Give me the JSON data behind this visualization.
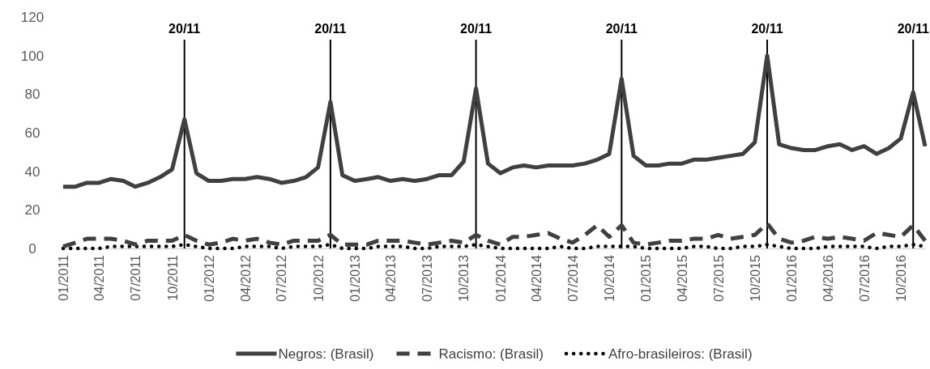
{
  "chart_data": {
    "type": "line",
    "x": [
      "2011-01",
      "2011-02",
      "2011-03",
      "2011-04",
      "2011-05",
      "2011-06",
      "2011-07",
      "2011-08",
      "2011-09",
      "2011-10",
      "2011-11",
      "2011-12",
      "2012-01",
      "2012-02",
      "2012-03",
      "2012-04",
      "2012-05",
      "2012-06",
      "2012-07",
      "2012-08",
      "2012-09",
      "2012-10",
      "2012-11",
      "2012-12",
      "2013-01",
      "2013-02",
      "2013-03",
      "2013-04",
      "2013-05",
      "2013-06",
      "2013-07",
      "2013-08",
      "2013-09",
      "2013-10",
      "2013-11",
      "2013-12",
      "2014-01",
      "2014-02",
      "2014-03",
      "2014-04",
      "2014-05",
      "2014-06",
      "2014-07",
      "2014-08",
      "2014-09",
      "2014-10",
      "2014-11",
      "2014-12",
      "2015-01",
      "2015-02",
      "2015-03",
      "2015-04",
      "2015-05",
      "2015-06",
      "2015-07",
      "2015-08",
      "2015-09",
      "2015-10",
      "2015-11",
      "2015-12",
      "2016-01",
      "2016-02",
      "2016-03",
      "2016-04",
      "2016-05",
      "2016-06",
      "2016-07",
      "2016-08",
      "2016-09",
      "2016-10",
      "2016-11",
      "2016-12"
    ],
    "series": [
      {
        "name": "Negros: (Brasil)",
        "color": "#404040",
        "line_style": "solid",
        "values": [
          32,
          32,
          34,
          34,
          36,
          35,
          32,
          34,
          37,
          41,
          67,
          39,
          35,
          35,
          36,
          36,
          37,
          36,
          34,
          35,
          37,
          42,
          76,
          38,
          35,
          36,
          37,
          35,
          36,
          35,
          36,
          38,
          38,
          45,
          83,
          44,
          39,
          42,
          43,
          42,
          43,
          43,
          43,
          44,
          46,
          49,
          88,
          48,
          43,
          43,
          44,
          44,
          46,
          46,
          47,
          48,
          49,
          55,
          100,
          54,
          52,
          51,
          51,
          53,
          54,
          51,
          53,
          49,
          52,
          57,
          81,
          53
        ]
      },
      {
        "name": "Racismo: (Brasil)",
        "color": "#404040",
        "line_style": "dashed",
        "values": [
          1,
          3,
          5,
          5,
          5,
          4,
          2,
          4,
          4,
          4,
          7,
          4,
          2,
          3,
          5,
          4,
          5,
          3,
          2,
          4,
          4,
          4,
          7,
          2,
          2,
          2,
          4,
          4,
          4,
          3,
          2,
          3,
          4,
          3,
          7,
          4,
          2,
          6,
          6,
          7,
          8,
          5,
          3,
          7,
          12,
          6,
          12,
          3,
          2,
          3,
          4,
          4,
          5,
          5,
          7,
          5,
          6,
          7,
          13,
          5,
          3,
          4,
          6,
          5,
          6,
          5,
          4,
          8,
          7,
          6,
          12,
          4
        ]
      },
      {
        "name": "Afro-brasileiros: (Brasil)",
        "color": "#000000",
        "line_style": "dotted",
        "values": [
          0,
          0,
          0,
          0,
          1,
          1,
          1,
          1,
          1,
          1,
          2,
          1,
          0,
          0,
          0,
          1,
          1,
          1,
          0,
          1,
          1,
          1,
          2,
          0,
          0,
          0,
          1,
          1,
          1,
          0,
          0,
          1,
          1,
          1,
          2,
          1,
          0,
          0,
          0,
          0,
          0,
          1,
          0,
          0,
          1,
          1,
          1,
          1,
          0,
          0,
          0,
          0,
          1,
          1,
          0,
          0,
          1,
          1,
          2,
          1,
          0,
          0,
          0,
          1,
          1,
          1,
          1,
          0,
          1,
          1,
          2,
          1
        ]
      }
    ],
    "xlim": [
      "2011-01",
      "2016-12"
    ],
    "xticks": [
      {
        "value": "2011-01",
        "label": "01/2011"
      },
      {
        "value": "2011-04",
        "label": "04/2011"
      },
      {
        "value": "2011-07",
        "label": "07/2011"
      },
      {
        "value": "2011-10",
        "label": "10/2011"
      },
      {
        "value": "2012-01",
        "label": "01/2012"
      },
      {
        "value": "2012-04",
        "label": "04/2012"
      },
      {
        "value": "2012-07",
        "label": "07/2012"
      },
      {
        "value": "2012-10",
        "label": "10/2012"
      },
      {
        "value": "2013-01",
        "label": "01/2013"
      },
      {
        "value": "2013-04",
        "label": "04/2013"
      },
      {
        "value": "2013-07",
        "label": "07/2013"
      },
      {
        "value": "2013-10",
        "label": "10/2013"
      },
      {
        "value": "2014-01",
        "label": "01/2014"
      },
      {
        "value": "2014-04",
        "label": "04/2014"
      },
      {
        "value": "2014-07",
        "label": "07/2014"
      },
      {
        "value": "2014-10",
        "label": "10/2014"
      },
      {
        "value": "2015-01",
        "label": "01/2015"
      },
      {
        "value": "2015-04",
        "label": "04/2015"
      },
      {
        "value": "2015-07",
        "label": "07/2015"
      },
      {
        "value": "2015-10",
        "label": "10/2015"
      },
      {
        "value": "2016-01",
        "label": "01/2016"
      },
      {
        "value": "2016-04",
        "label": "04/2016"
      },
      {
        "value": "2016-07",
        "label": "07/2016"
      },
      {
        "value": "2016-10",
        "label": "10/2016"
      }
    ],
    "ylim": [
      0,
      120
    ],
    "yticks": [
      0,
      20,
      40,
      60,
      80,
      100,
      120
    ],
    "grid": false,
    "legend": "bottom",
    "ref_lines": [
      {
        "axis": "x",
        "value": "2011-11",
        "label": "20/11",
        "color": "#000000"
      },
      {
        "axis": "x",
        "value": "2012-11",
        "label": "20/11",
        "color": "#000000"
      },
      {
        "axis": "x",
        "value": "2013-11",
        "label": "20/11",
        "color": "#000000"
      },
      {
        "axis": "x",
        "value": "2014-11",
        "label": "20/11",
        "color": "#000000"
      },
      {
        "axis": "x",
        "value": "2015-11",
        "label": "20/11",
        "color": "#000000"
      },
      {
        "axis": "x",
        "value": "2016-11",
        "label": "20/11",
        "color": "#000000"
      }
    ]
  }
}
